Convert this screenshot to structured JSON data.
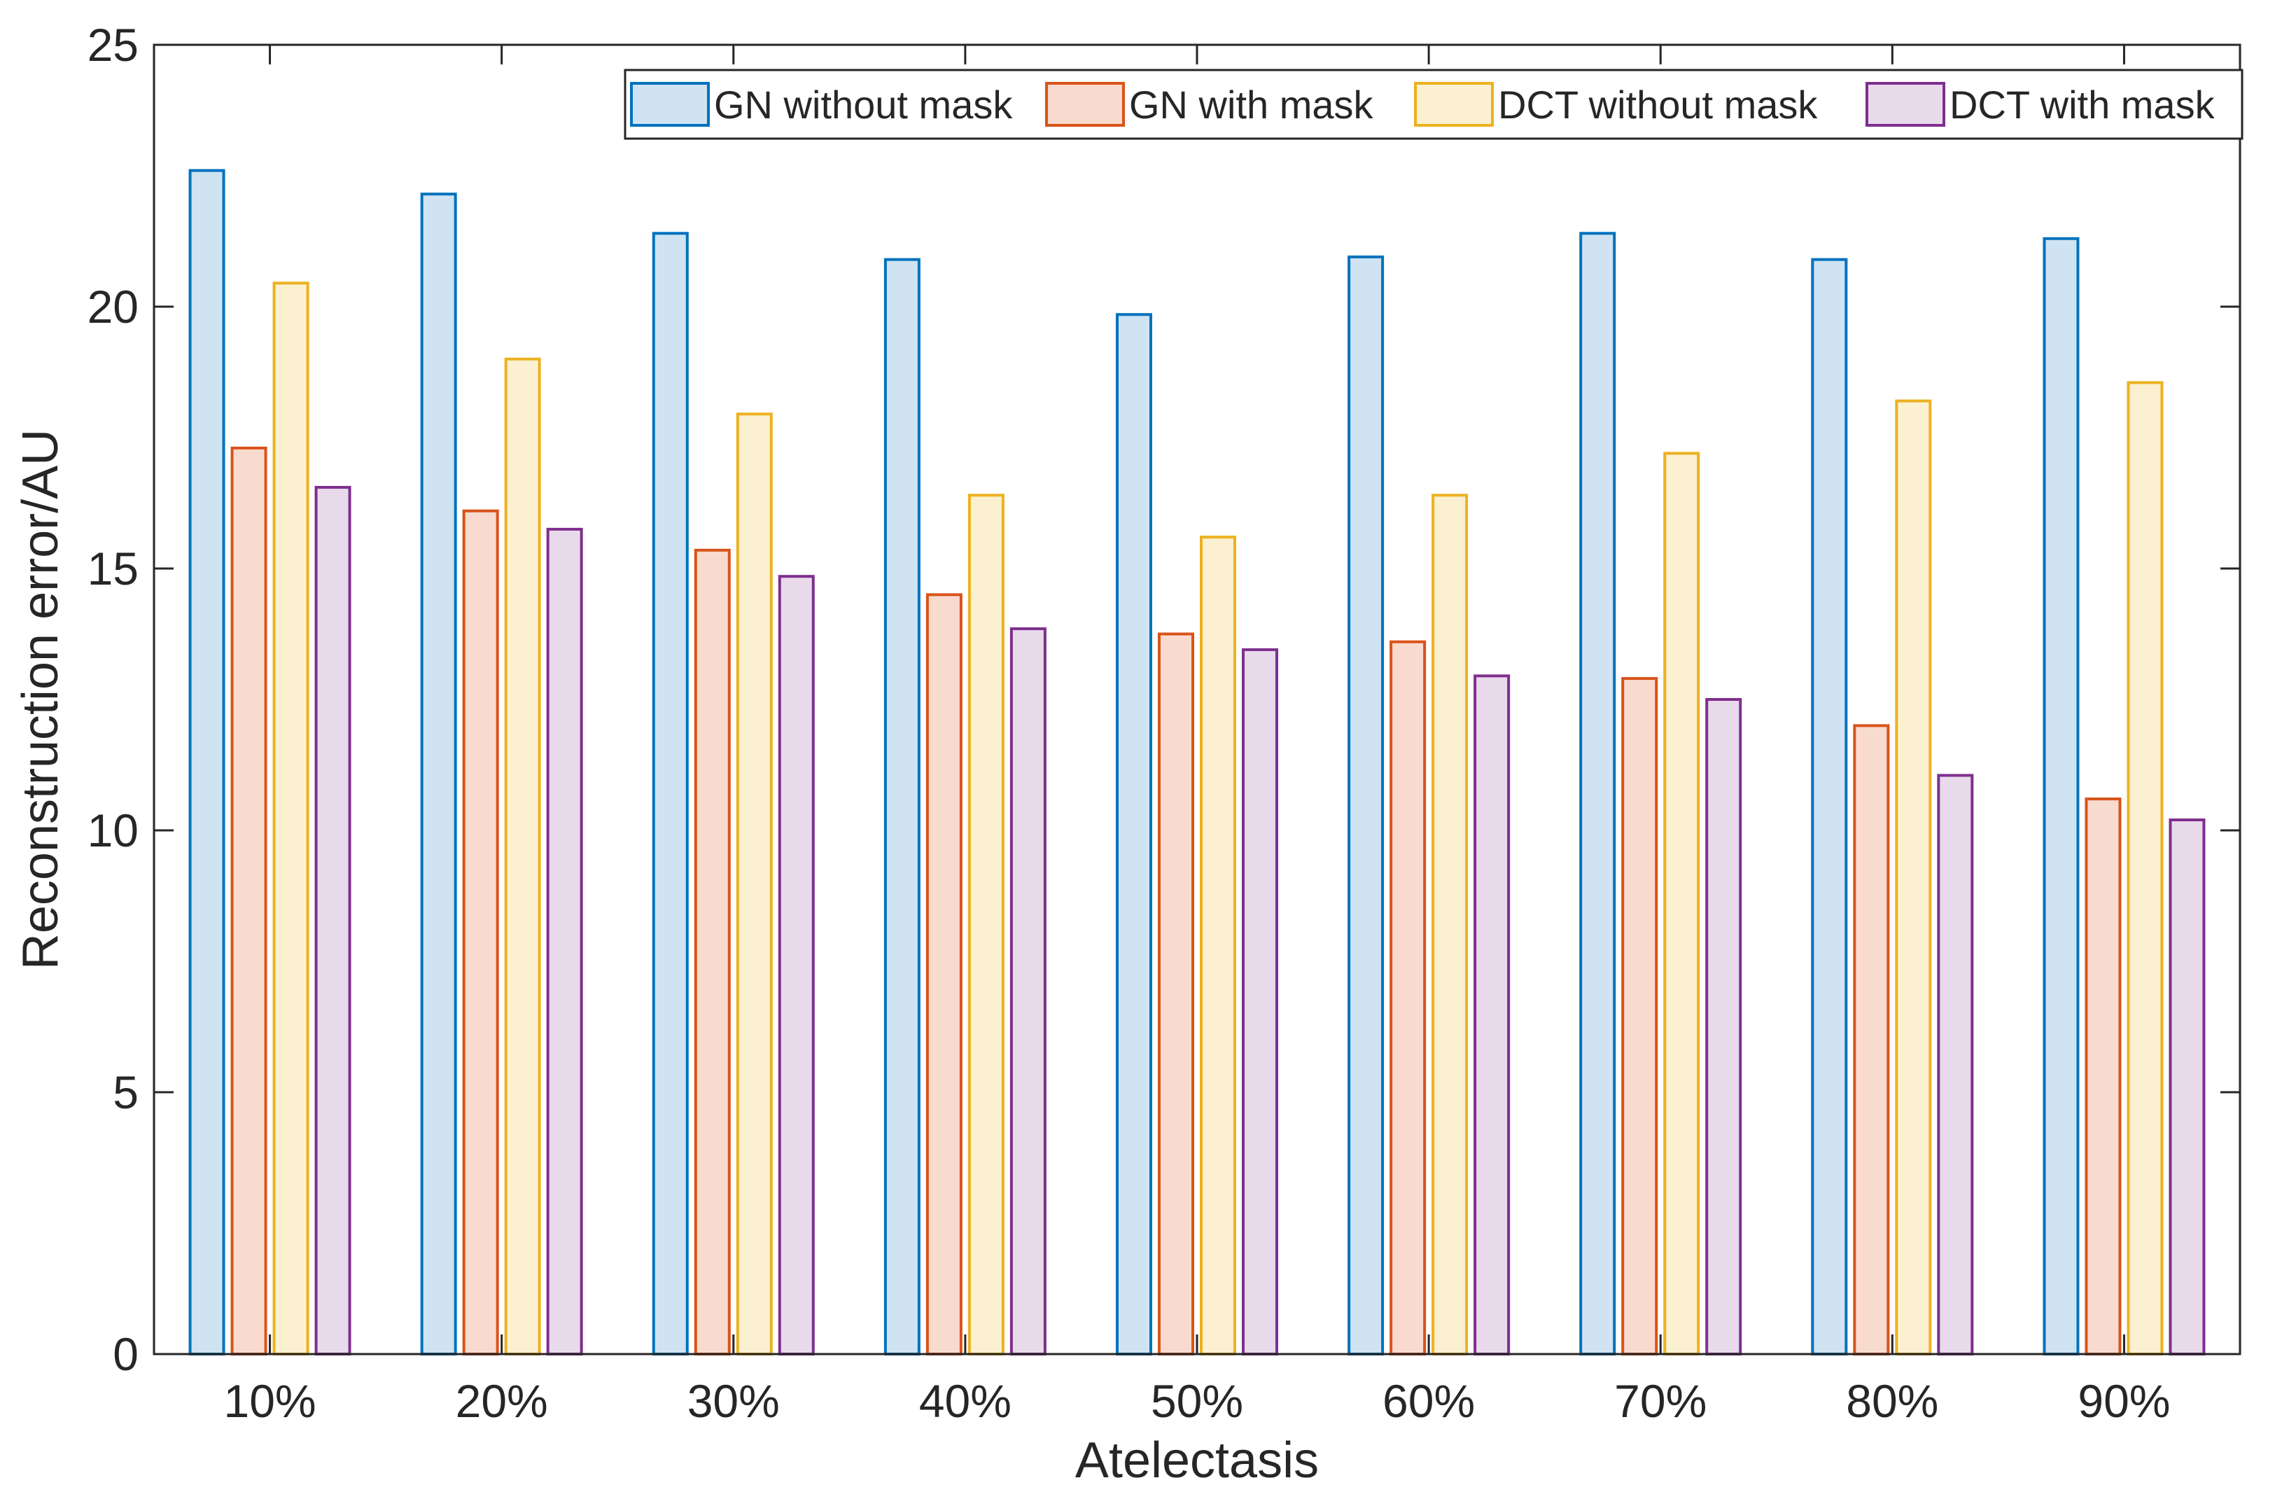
{
  "chart_data": {
    "type": "bar",
    "title": "",
    "xlabel": "Atelectasis",
    "ylabel": "Reconstruction error/AU",
    "categories": [
      "10%",
      "20%",
      "30%",
      "40%",
      "50%",
      "60%",
      "70%",
      "80%",
      "90%"
    ],
    "ylim": [
      0,
      25
    ],
    "yticks": [
      0,
      5,
      10,
      15,
      20,
      25
    ],
    "ytick_labels": [
      "0",
      "5",
      "10",
      "15",
      "20",
      "25"
    ],
    "grid": false,
    "legend_position": "top-right",
    "series": [
      {
        "name": "GN without mask",
        "values": [
          22.6,
          22.15,
          21.4,
          20.9,
          19.85,
          20.95,
          21.4,
          20.9,
          21.3
        ],
        "edge": "#0072BD",
        "fill": "#CFE3F2"
      },
      {
        "name": "GN with mask",
        "values": [
          17.3,
          16.1,
          15.35,
          14.5,
          13.75,
          13.6,
          12.9,
          12.0,
          10.6
        ],
        "edge": "#D95319",
        "fill": "#F8DBCE"
      },
      {
        "name": "DCT without mask",
        "values": [
          20.45,
          19.0,
          17.95,
          16.4,
          15.6,
          16.4,
          17.2,
          18.2,
          18.55
        ],
        "edge": "#EDB120",
        "fill": "#FBF0D0"
      },
      {
        "name": "DCT with mask",
        "values": [
          16.55,
          15.75,
          14.85,
          13.85,
          13.45,
          12.95,
          12.5,
          11.05,
          10.2
        ],
        "edge": "#7E2F8E",
        "fill": "#E8DAEB"
      }
    ]
  }
}
